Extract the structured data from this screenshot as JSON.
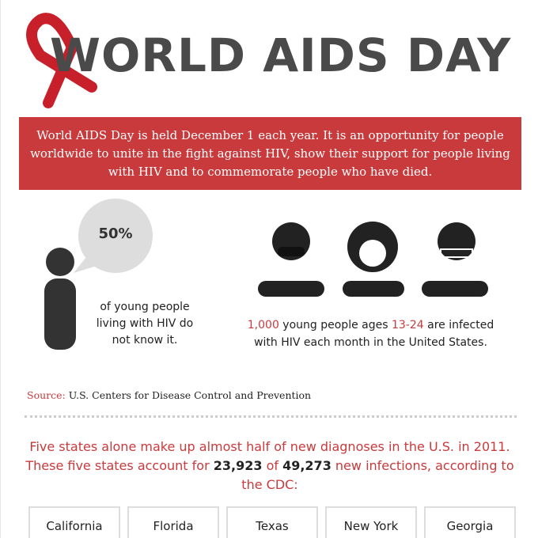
{
  "header": {
    "title": "WORLD AIDS DAY"
  },
  "intro": "World AIDS Day is held December 1 each year. It is an opportunity for people worldwide to unite in the fight against HIV, show their support for people living with HIV and to commemorate people who have died.",
  "stat_left": {
    "value": "50%",
    "text": "of young people living with HIV do not know it."
  },
  "stat_right": {
    "parts": [
      "1,000",
      " young people ages ",
      "13-24",
      " are infected with HIV each month in the United States."
    ]
  },
  "source": {
    "label": "Source:",
    "text": " U.S. Centers for Disease Control and Prevention"
  },
  "states_intro": {
    "parts": [
      "Five states alone make up almost half of new diagnoses in the U.S. in 2011. These five states account for ",
      "23,923",
      " of ",
      "49,273",
      " new infections, according to the CDC:"
    ]
  },
  "states": [
    "California",
    "Florida",
    "Texas",
    "New York",
    "Georgia"
  ]
}
